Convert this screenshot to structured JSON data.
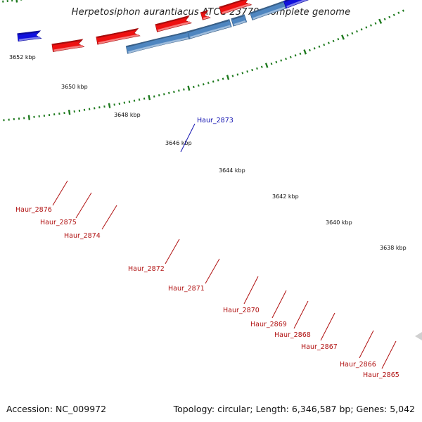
{
  "title": "Herpetosiphon aurantiacus ATCC 23779, complete genome",
  "accession": "Accession: NC_009972",
  "summary": "Topology: circular; Length: 6,346,587 bp; Genes: 5,042",
  "colors": {
    "backbone": "#8a8a8a",
    "tick": "#1e7a1e",
    "label_red": "#b01010",
    "label_blue": "#1010b0",
    "red": "#ee1111",
    "blue": "#1111dd",
    "cyan": "#22dddd",
    "green": "#22e89a",
    "orange": "#ff8800",
    "steel": "#4f86c0",
    "gray": "#707070",
    "khaki": "#c8c070"
  },
  "kbp_labels": [
    "3652 kbp",
    "3650 kbp",
    "3648 kbp",
    "3646 kbp",
    "3644 kbp",
    "3642 kbp",
    "3640 kbp",
    "3638 kbp"
  ],
  "gene_labels": [
    {
      "text": "Haur_2873",
      "color": "blue"
    },
    {
      "text": "Haur_2876",
      "color": "red"
    },
    {
      "text": "Haur_2875",
      "color": "red"
    },
    {
      "text": "Haur_2874",
      "color": "red"
    },
    {
      "text": "Haur_2872",
      "color": "red"
    },
    {
      "text": "Haur_2871",
      "color": "red"
    },
    {
      "text": "Haur_2870",
      "color": "red"
    },
    {
      "text": "Haur_2869",
      "color": "red"
    },
    {
      "text": "Haur_2868",
      "color": "red"
    },
    {
      "text": "Haur_2867",
      "color": "red"
    },
    {
      "text": "Haur_2866",
      "color": "red"
    },
    {
      "text": "Haur_2865",
      "color": "red"
    }
  ]
}
